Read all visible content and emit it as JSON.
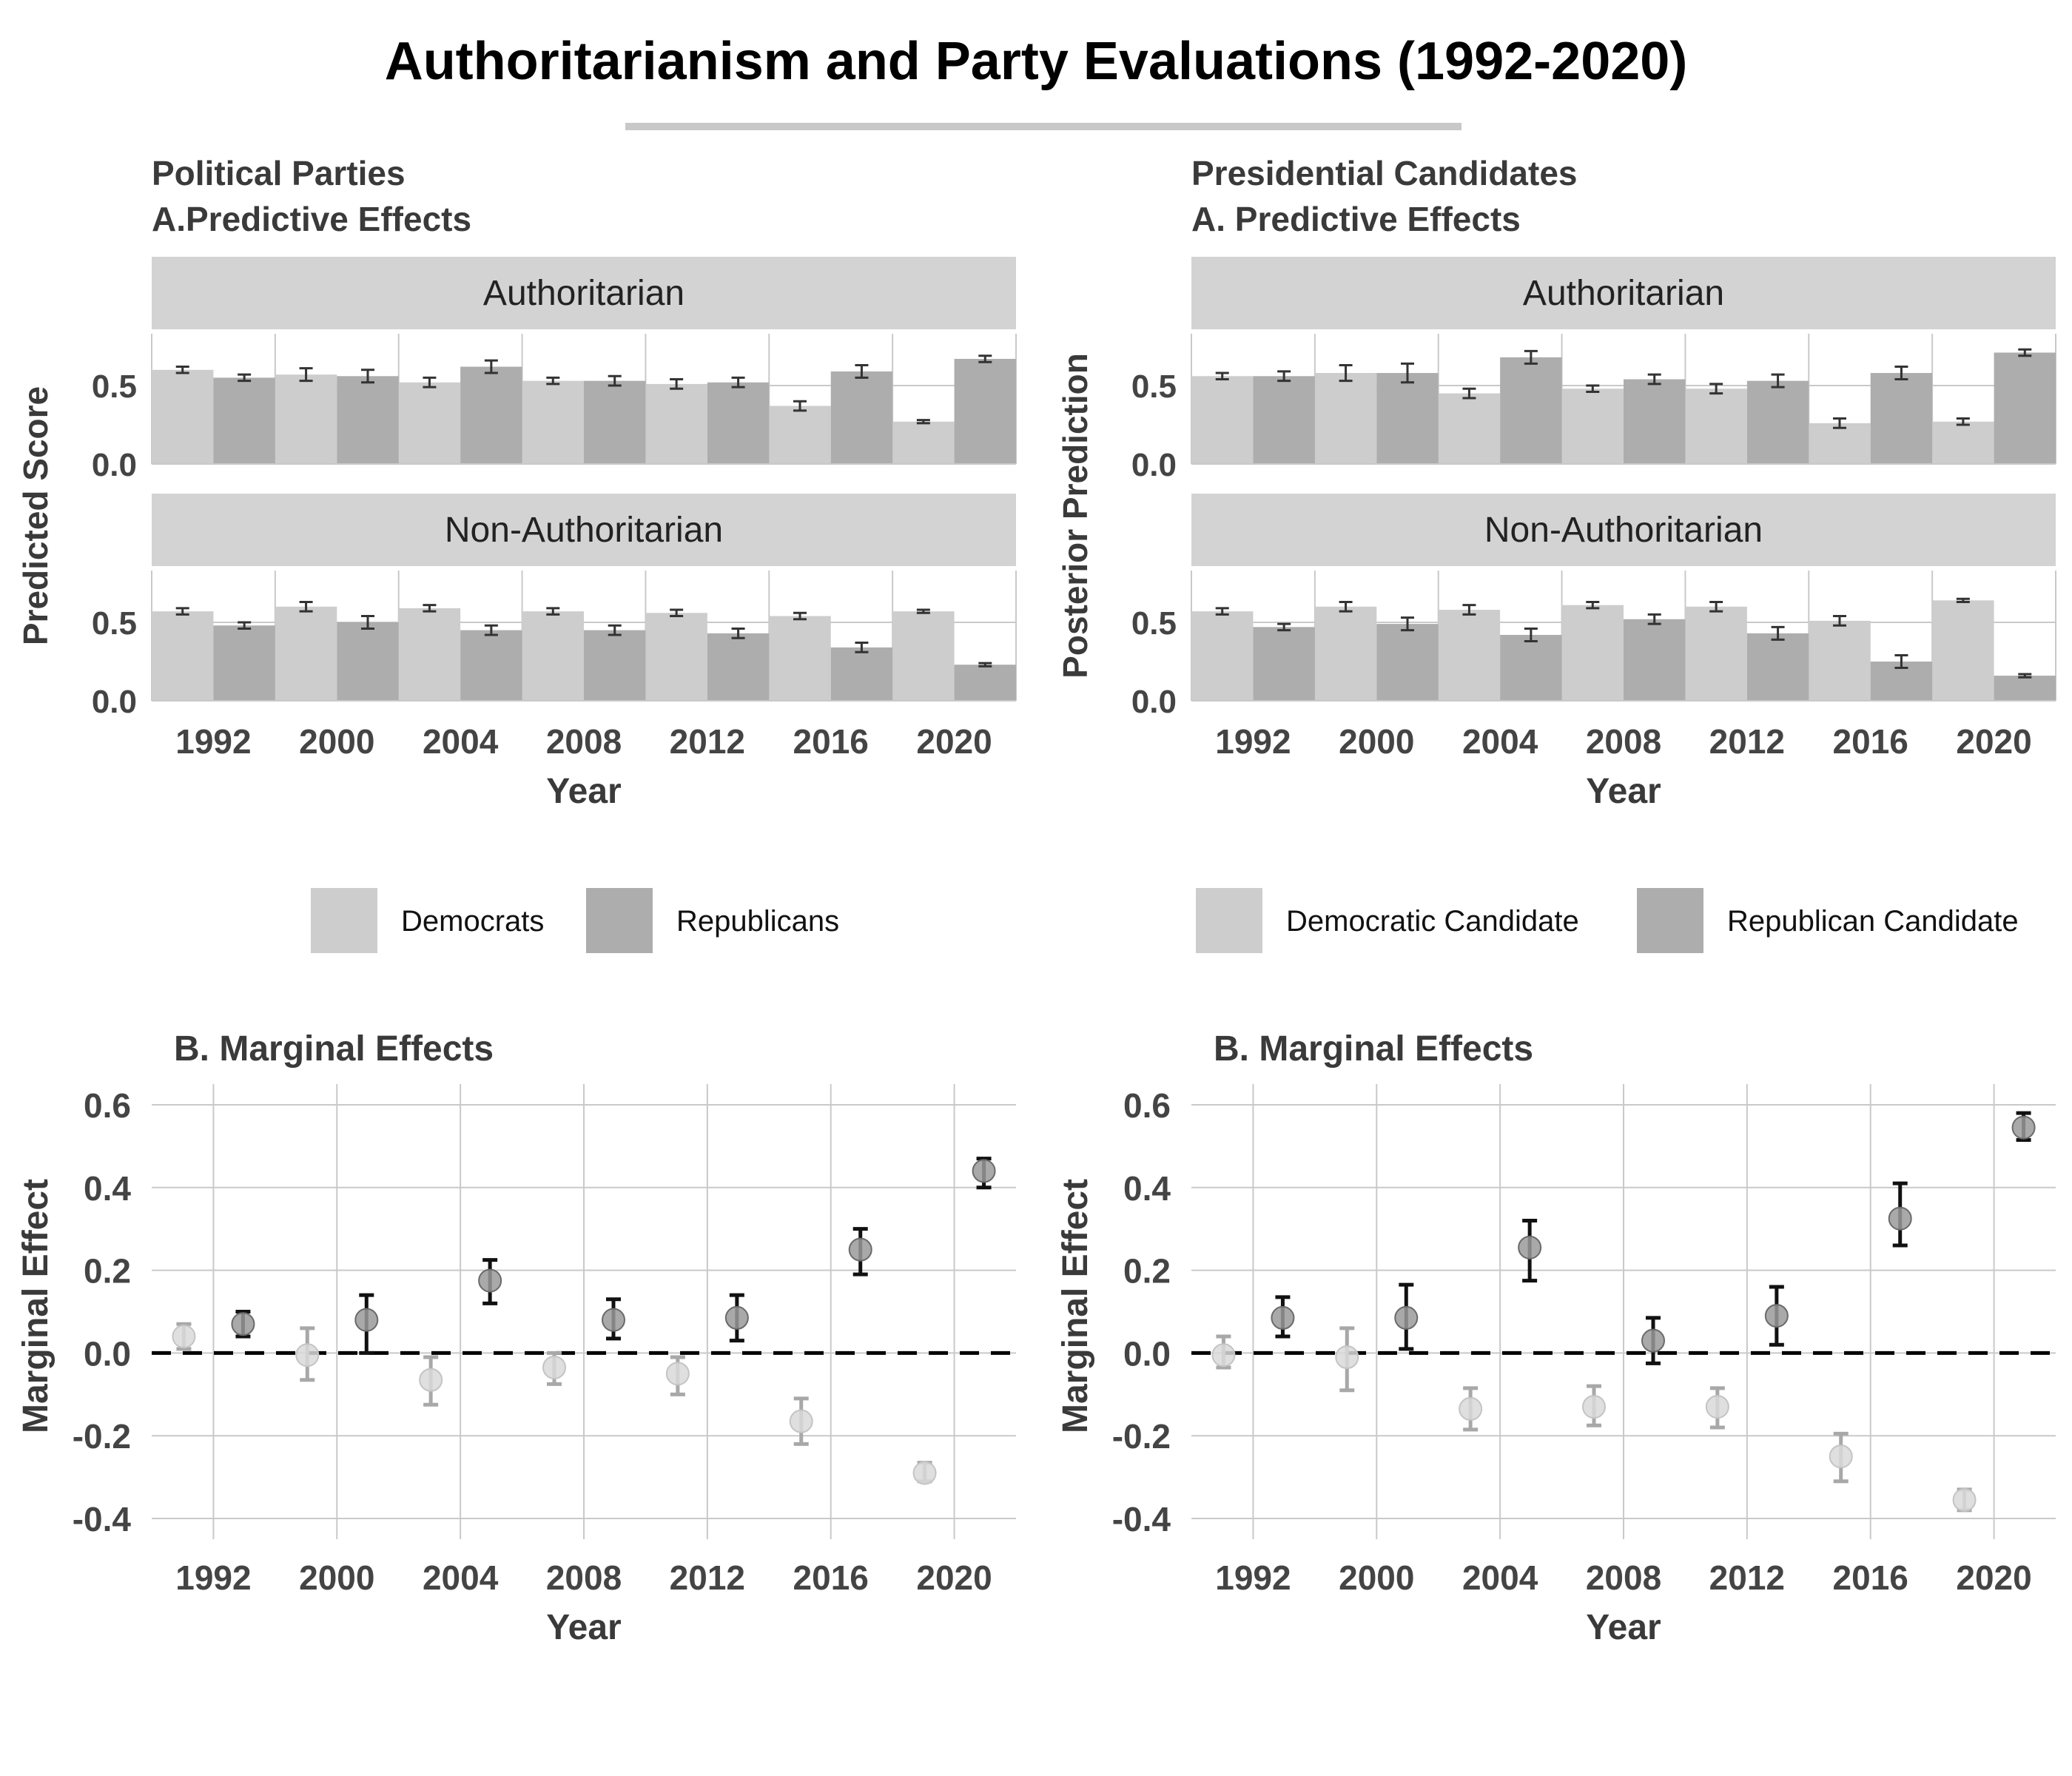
{
  "title": "Authoritarianism and Party Evaluations (1992-2020)",
  "colors": {
    "dem_bar": "#cdcdcd",
    "rep_bar": "#adadad",
    "strip": "#d3d3d3",
    "grid": "#c9c9c9",
    "dem_point": "#d9d9d9",
    "rep_point": "#9a9a9a",
    "dem_err": "#a8a8a8",
    "rep_err": "#111111"
  },
  "left_panel": {
    "title_line1": "Political Parties",
    "title_line2": "A.Predictive Effects",
    "ylabel": "Predicted Score"
  },
  "right_panel": {
    "title_line1": "Presidential Candidates",
    "title_line2": "A. Predictive Effects",
    "ylabel": "Posterior Prediction"
  },
  "chart_data": [
    {
      "type": "bar",
      "panel": "Political Parties",
      "subtitle": "A.Predictive Effects",
      "xlabel": "Year",
      "ylabel": "Predicted Score",
      "categories": [
        "1992",
        "2000",
        "2004",
        "2008",
        "2012",
        "2016",
        "2020"
      ],
      "y_ticks": [
        "0.0",
        "0.5"
      ],
      "ylim": [
        0,
        0.83
      ],
      "legend": [
        "Democrats",
        "Republicans"
      ],
      "facets": [
        {
          "label": "Authoritarian",
          "series": [
            {
              "name": "Democrats",
              "values": [
                0.6,
                0.57,
                0.52,
                0.53,
                0.51,
                0.37,
                0.27
              ],
              "err": [
                0.02,
                0.04,
                0.03,
                0.02,
                0.03,
                0.03,
                0.01
              ]
            },
            {
              "name": "Republicans",
              "values": [
                0.55,
                0.56,
                0.62,
                0.53,
                0.52,
                0.59,
                0.67
              ],
              "err": [
                0.02,
                0.04,
                0.04,
                0.03,
                0.03,
                0.04,
                0.02
              ]
            }
          ]
        },
        {
          "label": "Non-Authoritarian",
          "series": [
            {
              "name": "Democrats",
              "values": [
                0.57,
                0.6,
                0.59,
                0.57,
                0.56,
                0.54,
                0.57
              ],
              "err": [
                0.02,
                0.03,
                0.02,
                0.02,
                0.02,
                0.02,
                0.01
              ]
            },
            {
              "name": "Republicans",
              "values": [
                0.48,
                0.5,
                0.45,
                0.45,
                0.43,
                0.34,
                0.23
              ],
              "err": [
                0.02,
                0.04,
                0.03,
                0.03,
                0.03,
                0.03,
                0.01
              ]
            }
          ]
        }
      ]
    },
    {
      "type": "bar",
      "panel": "Presidential Candidates",
      "subtitle": "A. Predictive Effects",
      "xlabel": "Year",
      "ylabel": "Posterior Prediction",
      "categories": [
        "1992",
        "2000",
        "2004",
        "2008",
        "2012",
        "2016",
        "2020"
      ],
      "y_ticks": [
        "0.0",
        "0.5"
      ],
      "ylim": [
        0,
        0.83
      ],
      "legend": [
        "Democratic Candidate",
        "Republican Candidate"
      ],
      "facets": [
        {
          "label": "Authoritarian",
          "series": [
            {
              "name": "Democratic Candidate",
              "values": [
                0.56,
                0.58,
                0.45,
                0.48,
                0.48,
                0.26,
                0.27
              ],
              "err": [
                0.02,
                0.05,
                0.03,
                0.02,
                0.03,
                0.03,
                0.02
              ]
            },
            {
              "name": "Republican Candidate",
              "values": [
                0.56,
                0.58,
                0.68,
                0.54,
                0.53,
                0.58,
                0.71
              ],
              "err": [
                0.03,
                0.06,
                0.04,
                0.03,
                0.04,
                0.04,
                0.02
              ]
            }
          ]
        },
        {
          "label": "Non-Authoritarian",
          "series": [
            {
              "name": "Democratic Candidate",
              "values": [
                0.57,
                0.6,
                0.58,
                0.61,
                0.6,
                0.51,
                0.64
              ],
              "err": [
                0.02,
                0.03,
                0.03,
                0.02,
                0.03,
                0.03,
                0.01
              ]
            },
            {
              "name": "Republican Candidate",
              "values": [
                0.47,
                0.49,
                0.42,
                0.52,
                0.43,
                0.25,
                0.16
              ],
              "err": [
                0.02,
                0.04,
                0.04,
                0.03,
                0.04,
                0.04,
                0.01
              ]
            }
          ]
        }
      ]
    },
    {
      "type": "scatter",
      "panel": "Political Parties",
      "title": "B. Marginal Effects",
      "xlabel": "Year",
      "ylabel": "Marginal Effect",
      "categories": [
        "1992",
        "2000",
        "2004",
        "2008",
        "2012",
        "2016",
        "2020"
      ],
      "y_ticks": [
        "-0.4",
        "-0.2",
        "0.0",
        "0.2",
        "0.4",
        "0.6"
      ],
      "ylim": [
        -0.45,
        0.65
      ],
      "reference_line": 0,
      "series": [
        {
          "name": "Democrats",
          "values": [
            0.04,
            -0.005,
            -0.065,
            -0.035,
            -0.05,
            -0.165,
            -0.29
          ],
          "low": [
            0.01,
            -0.065,
            -0.125,
            -0.075,
            -0.1,
            -0.22,
            -0.31
          ],
          "high": [
            0.07,
            0.06,
            -0.01,
            0.0,
            -0.01,
            -0.11,
            -0.265
          ]
        },
        {
          "name": "Republicans",
          "values": [
            0.07,
            0.08,
            0.175,
            0.08,
            0.085,
            0.25,
            0.44
          ],
          "low": [
            0.04,
            0.0,
            0.12,
            0.035,
            0.03,
            0.19,
            0.4
          ],
          "high": [
            0.1,
            0.14,
            0.225,
            0.13,
            0.14,
            0.3,
            0.47
          ]
        }
      ]
    },
    {
      "type": "scatter",
      "panel": "Presidential Candidates",
      "title": "B. Marginal Effects",
      "xlabel": "Year",
      "ylabel": "Marginal Effect",
      "categories": [
        "1992",
        "2000",
        "2004",
        "2008",
        "2012",
        "2016",
        "2020"
      ],
      "y_ticks": [
        "-0.4",
        "-0.2",
        "0.0",
        "0.2",
        "0.4",
        "0.6"
      ],
      "ylim": [
        -0.45,
        0.65
      ],
      "reference_line": 0,
      "series": [
        {
          "name": "Democratic Candidate",
          "values": [
            -0.005,
            -0.01,
            -0.135,
            -0.13,
            -0.13,
            -0.25,
            -0.355
          ],
          "low": [
            -0.035,
            -0.09,
            -0.185,
            -0.175,
            -0.18,
            -0.31,
            -0.38
          ],
          "high": [
            0.04,
            0.06,
            -0.085,
            -0.08,
            -0.085,
            -0.195,
            -0.33
          ]
        },
        {
          "name": "Republican Candidate",
          "values": [
            0.085,
            0.085,
            0.255,
            0.03,
            0.09,
            0.325,
            0.545
          ],
          "low": [
            0.04,
            0.01,
            0.175,
            -0.025,
            0.02,
            0.26,
            0.515
          ],
          "high": [
            0.135,
            0.165,
            0.32,
            0.085,
            0.16,
            0.41,
            0.58
          ]
        }
      ]
    }
  ]
}
